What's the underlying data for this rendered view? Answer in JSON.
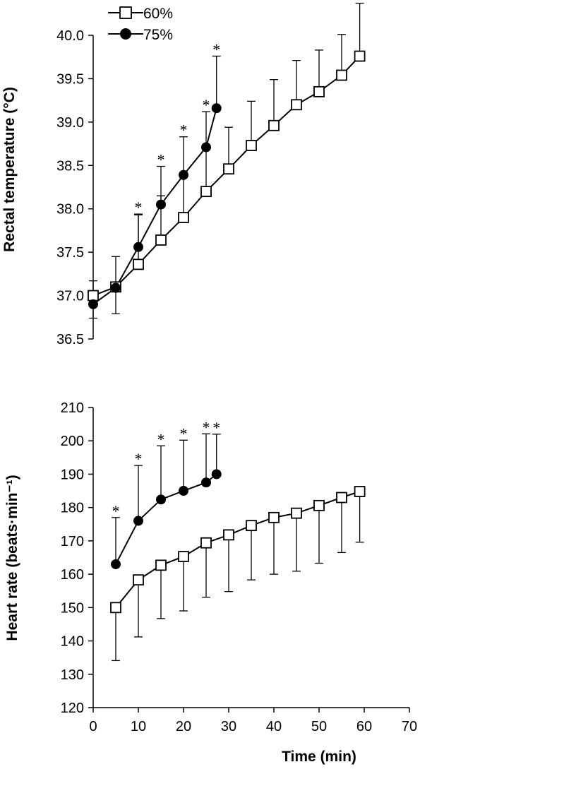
{
  "legend": {
    "items": [
      {
        "label": "60%",
        "marker": "open-square"
      },
      {
        "label": "75%",
        "marker": "filled-circle"
      }
    ]
  },
  "colors": {
    "line": "#000000",
    "open_fill": "#ffffff",
    "filled": "#000000"
  },
  "chart_data": [
    {
      "type": "line",
      "xlabel": "",
      "ylabel": "Rectal temperature (°C)",
      "ylim": [
        36.5,
        40.0
      ],
      "yticks": [
        36.5,
        37.0,
        37.5,
        38.0,
        38.5,
        39.0,
        39.5,
        40.0
      ],
      "xlim": [
        0,
        70
      ],
      "grid": false,
      "legend_position": "top-left",
      "series": [
        {
          "name": "60%",
          "marker": "open-square",
          "x": [
            0,
            5,
            10,
            15,
            20,
            25,
            30,
            35,
            40,
            45,
            50,
            55,
            59
          ],
          "y": [
            37.0,
            37.1,
            37.36,
            37.64,
            37.9,
            38.2,
            38.46,
            38.73,
            38.96,
            39.2,
            39.35,
            39.54,
            39.76
          ],
          "error_plus": [
            0.17,
            0.35,
            0.57,
            0.51,
            0.47,
            0.49,
            0.48,
            0.51,
            0.53,
            0.51,
            0.48,
            0.47,
            0.61
          ],
          "error_minus": [
            0.0,
            0.0,
            0.0,
            0.0,
            0.0,
            0.0,
            0.0,
            0.0,
            0.0,
            0.0,
            0.0,
            0.0,
            0.0
          ],
          "markers_above": [
            "",
            "",
            "",
            "",
            "",
            "",
            "",
            "",
            "",
            "",
            "",
            "",
            "§"
          ]
        },
        {
          "name": "75%",
          "marker": "filled-circle",
          "x": [
            0,
            5,
            10,
            15,
            20,
            25,
            27.3
          ],
          "y": [
            36.9,
            37.09,
            37.56,
            38.05,
            38.39,
            38.71,
            39.16
          ],
          "error_plus": [
            0.0,
            0.0,
            0.38,
            0.44,
            0.44,
            0.41,
            0.6
          ],
          "error_minus": [
            0.16,
            0.3,
            0.0,
            0.0,
            0.0,
            0.0,
            0.0
          ],
          "markers_above": [
            "",
            "",
            "*",
            "*",
            "*",
            "*",
            "*"
          ]
        }
      ]
    },
    {
      "type": "line",
      "xlabel": "Time (min)",
      "ylabel": "Heart rate (beats·min⁻¹)",
      "ylim": [
        120,
        210
      ],
      "yticks": [
        120,
        130,
        140,
        150,
        160,
        170,
        180,
        190,
        200,
        210
      ],
      "xlim": [
        0,
        70
      ],
      "xticks": [
        0,
        10,
        20,
        30,
        40,
        50,
        60,
        70
      ],
      "grid": false,
      "series": [
        {
          "name": "60%",
          "marker": "open-square",
          "x": [
            5,
            10,
            15,
            20,
            25,
            30,
            35,
            40,
            45,
            50,
            55,
            59
          ],
          "y": [
            150,
            158.3,
            162.7,
            165.3,
            169.4,
            171.8,
            174.6,
            177.0,
            178.3,
            180.6,
            183.0,
            184.8
          ],
          "error_plus": [
            0,
            0,
            0,
            0,
            0,
            0,
            0,
            0,
            0,
            0,
            0,
            0
          ],
          "error_minus": [
            15.9,
            17.1,
            16.0,
            16.3,
            16.3,
            17.0,
            16.3,
            17.0,
            17.4,
            17.3,
            16.5,
            15.2
          ],
          "markers_above": [
            "",
            "",
            "",
            "",
            "",
            "",
            "",
            "",
            "",
            "",
            "",
            ""
          ]
        },
        {
          "name": "75%",
          "marker": "filled-circle",
          "x": [
            5,
            10,
            15,
            20,
            25,
            27.3
          ],
          "y": [
            163,
            176,
            182.4,
            185,
            187.5,
            190
          ],
          "error_plus": [
            14,
            16.6,
            16.1,
            15.2,
            14.6,
            12
          ],
          "error_minus": [
            0,
            0,
            0,
            0,
            0,
            0
          ],
          "markers_above": [
            "*",
            "*",
            "*",
            "*",
            "*",
            "*"
          ]
        }
      ]
    }
  ]
}
